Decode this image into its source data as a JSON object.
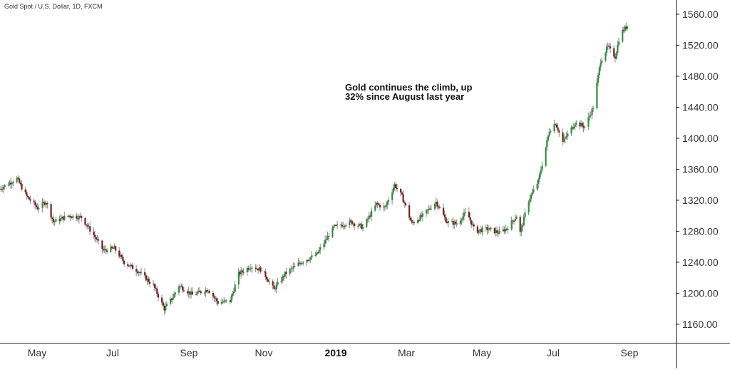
{
  "colors": {
    "up": "#2f8f3c",
    "down": "#7a1f1f",
    "wick": "#8a8a8a",
    "axis": "#222222",
    "label": "#333333"
  },
  "chart_data": {
    "type": "candlestick",
    "title": "Gold Spot / U.S. Dollar, 1D, FXCM",
    "annotation": [
      "Gold continues the climb, up",
      "32% since August last year"
    ],
    "ylim": [
      1140,
      1570
    ],
    "y_ticks": [
      "1560.00",
      "1520.00",
      "1480.00",
      "1440.00",
      "1400.00",
      "1360.00",
      "1320.00",
      "1280.00",
      "1240.00",
      "1200.00",
      "1160.00"
    ],
    "x_ticks": [
      "May",
      "Jul",
      "Sep",
      "Nov",
      "2019",
      "Mar",
      "May",
      "Jul",
      "Sep"
    ],
    "grid": false,
    "close_path": [
      [
        "2018-04-01",
        1334
      ],
      [
        "2018-04-16",
        1348
      ],
      [
        "2018-04-24",
        1325
      ],
      [
        "2018-05-03",
        1310
      ],
      [
        "2018-05-10",
        1318
      ],
      [
        "2018-05-16",
        1292
      ],
      [
        "2018-05-28",
        1300
      ],
      [
        "2018-06-08",
        1298
      ],
      [
        "2018-06-18",
        1275
      ],
      [
        "2018-06-26",
        1255
      ],
      [
        "2018-07-05",
        1258
      ],
      [
        "2018-07-13",
        1240
      ],
      [
        "2018-07-25",
        1228
      ],
      [
        "2018-08-06",
        1210
      ],
      [
        "2018-08-15",
        1180
      ],
      [
        "2018-08-22",
        1195
      ],
      [
        "2018-08-27",
        1210
      ],
      [
        "2018-09-07",
        1198
      ],
      [
        "2018-09-20",
        1205
      ],
      [
        "2018-09-28",
        1188
      ],
      [
        "2018-10-08",
        1190
      ],
      [
        "2018-10-15",
        1225
      ],
      [
        "2018-10-25",
        1235
      ],
      [
        "2018-11-03",
        1230
      ],
      [
        "2018-11-13",
        1205
      ],
      [
        "2018-11-22",
        1225
      ],
      [
        "2018-12-05",
        1240
      ],
      [
        "2018-12-18",
        1250
      ],
      [
        "2019-01-01",
        1285
      ],
      [
        "2019-01-15",
        1292
      ],
      [
        "2019-01-25",
        1285
      ],
      [
        "2019-02-05",
        1315
      ],
      [
        "2019-02-12",
        1310
      ],
      [
        "2019-02-20",
        1340
      ],
      [
        "2019-02-26",
        1325
      ],
      [
        "2019-03-06",
        1290
      ],
      [
        "2019-03-15",
        1300
      ],
      [
        "2019-03-26",
        1318
      ],
      [
        "2019-04-04",
        1292
      ],
      [
        "2019-04-12",
        1290
      ],
      [
        "2019-04-20",
        1305
      ],
      [
        "2019-04-27",
        1280
      ],
      [
        "2019-05-07",
        1283
      ],
      [
        "2019-05-17",
        1278
      ],
      [
        "2019-05-24",
        1285
      ],
      [
        "2019-05-31",
        1300
      ],
      [
        "2019-06-03",
        1278
      ],
      [
        "2019-06-10",
        1320
      ],
      [
        "2019-06-18",
        1345
      ],
      [
        "2019-06-27",
        1410
      ],
      [
        "2019-07-02",
        1420
      ],
      [
        "2019-07-08",
        1395
      ],
      [
        "2019-07-18",
        1420
      ],
      [
        "2019-07-26",
        1415
      ],
      [
        "2019-08-02",
        1440
      ],
      [
        "2019-08-08",
        1500
      ],
      [
        "2019-08-14",
        1518
      ],
      [
        "2019-08-20",
        1505
      ],
      [
        "2019-08-24",
        1535
      ],
      [
        "2019-08-30",
        1545
      ]
    ]
  }
}
